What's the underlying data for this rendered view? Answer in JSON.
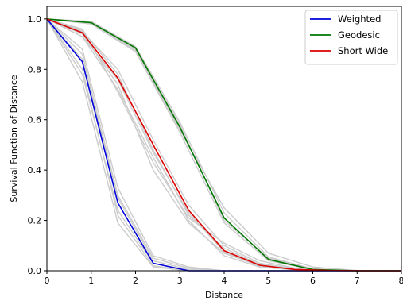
{
  "chart_data": {
    "type": "line",
    "xlabel": "Distance",
    "ylabel": "Survival Function of Distance",
    "xlim": [
      0,
      8
    ],
    "ylim": [
      0,
      1.05
    ],
    "xticks": [
      "0",
      "1",
      "2",
      "3",
      "4",
      "5",
      "6",
      "7",
      "8"
    ],
    "yticks": [
      "0.0",
      "0.2",
      "0.4",
      "0.6",
      "0.8",
      "1.0"
    ],
    "grid": false,
    "legend_position": "top-right",
    "x": [
      0,
      0.8,
      1.6,
      2.4,
      3.2,
      4.0,
      4.8,
      5.6,
      6.4,
      7.2,
      8.0
    ],
    "series": [
      {
        "name": "Weighted",
        "color": "#0000dd",
        "x": [
          0,
          0.8,
          1.6,
          2.4,
          3.2,
          4.0,
          8.0
        ],
        "values": [
          1.0,
          0.83,
          0.27,
          0.03,
          0.0,
          0.0,
          0.0
        ]
      },
      {
        "name": "Geodesic",
        "color": "#007700",
        "x": [
          0,
          1.0,
          2.0,
          3.0,
          4.0,
          5.0,
          6.0,
          7.0,
          8.0
        ],
        "values": [
          1.0,
          0.985,
          0.885,
          0.57,
          0.21,
          0.045,
          0.005,
          0.0,
          0.0
        ]
      },
      {
        "name": "Short Wide",
        "color": "#dd0000",
        "x": [
          0,
          0.8,
          1.6,
          2.4,
          3.2,
          4.0,
          4.8,
          5.6,
          6.4,
          7.2,
          8.0
        ],
        "values": [
          1.0,
          0.945,
          0.765,
          0.5,
          0.24,
          0.08,
          0.022,
          0.005,
          0.001,
          0.0,
          0.0
        ]
      }
    ],
    "background_series_color": "#cccccc",
    "background_series": [
      {
        "x": [
          0,
          0.8,
          1.6,
          2.4,
          3.2,
          4.0,
          8.0
        ],
        "values": [
          1.0,
          0.86,
          0.3,
          0.05,
          0.01,
          0.0,
          0.0
        ]
      },
      {
        "x": [
          0,
          0.8,
          1.6,
          2.4,
          3.2,
          4.0,
          8.0
        ],
        "values": [
          1.0,
          0.88,
          0.33,
          0.06,
          0.015,
          0.0,
          0.0
        ]
      },
      {
        "x": [
          0,
          0.8,
          1.6,
          2.4,
          3.2,
          4.0,
          8.0
        ],
        "values": [
          1.0,
          0.8,
          0.22,
          0.02,
          0.0,
          0.0,
          0.0
        ]
      },
      {
        "x": [
          0,
          0.8,
          1.6,
          2.4,
          3.2,
          4.0,
          8.0
        ],
        "values": [
          1.0,
          0.75,
          0.19,
          0.015,
          0.0,
          0.0,
          0.0
        ]
      },
      {
        "x": [
          0,
          0.8,
          1.6,
          2.4,
          3.2,
          4.0,
          8.0
        ],
        "values": [
          1.0,
          0.84,
          0.29,
          0.04,
          0.005,
          0.0,
          0.0
        ]
      },
      {
        "x": [
          0,
          0.8,
          1.6,
          2.4,
          3.2,
          4.0,
          8.0
        ],
        "values": [
          1.0,
          0.78,
          0.24,
          0.03,
          0.002,
          0.0,
          0.0
        ]
      },
      {
        "x": [
          0,
          1.0,
          2.0,
          3.0,
          4.0,
          5.0,
          6.0,
          7.0,
          8.0
        ],
        "values": [
          1.0,
          0.98,
          0.87,
          0.55,
          0.19,
          0.04,
          0.004,
          0.0,
          0.0
        ]
      },
      {
        "x": [
          0,
          1.0,
          2.0,
          3.0,
          4.0,
          5.0,
          6.0,
          7.0,
          8.0
        ],
        "values": [
          1.0,
          0.99,
          0.89,
          0.59,
          0.23,
          0.055,
          0.008,
          0.0,
          0.0
        ]
      },
      {
        "x": [
          0,
          1.0,
          2.0,
          3.0,
          4.0,
          5.0,
          6.0,
          7.0,
          8.0
        ],
        "values": [
          1.0,
          0.985,
          0.875,
          0.56,
          0.25,
          0.07,
          0.015,
          0.001,
          0.0
        ]
      },
      {
        "x": [
          0,
          1.0,
          2.0,
          3.0,
          4.0,
          5.0,
          6.0,
          7.0,
          8.0
        ],
        "values": [
          1.0,
          0.98,
          0.88,
          0.58,
          0.2,
          0.05,
          0.006,
          0.0,
          0.0
        ]
      },
      {
        "x": [
          0,
          0.8,
          1.6,
          2.4,
          3.2,
          4.0,
          4.8,
          5.6,
          6.4,
          7.2,
          8.0
        ],
        "values": [
          1.0,
          0.93,
          0.72,
          0.45,
          0.2,
          0.06,
          0.015,
          0.003,
          0.0,
          0.0,
          0.0
        ]
      },
      {
        "x": [
          0,
          0.8,
          1.6,
          2.4,
          3.2,
          4.0,
          4.8,
          5.6,
          6.4,
          7.2,
          8.0
        ],
        "values": [
          1.0,
          0.95,
          0.8,
          0.52,
          0.26,
          0.1,
          0.03,
          0.008,
          0.002,
          0.0,
          0.0
        ]
      },
      {
        "x": [
          0,
          0.8,
          1.6,
          2.4,
          3.2,
          4.0,
          4.8,
          5.6,
          6.4,
          7.2,
          8.0
        ],
        "values": [
          1.0,
          0.94,
          0.74,
          0.4,
          0.19,
          0.07,
          0.02,
          0.005,
          0.001,
          0.0,
          0.0
        ]
      },
      {
        "x": [
          0,
          0.8,
          1.6,
          2.4,
          3.2,
          4.0,
          4.8,
          5.6,
          6.4,
          7.2,
          8.0
        ],
        "values": [
          1.0,
          0.955,
          0.78,
          0.48,
          0.22,
          0.09,
          0.025,
          0.006,
          0.001,
          0.0,
          0.0
        ]
      },
      {
        "x": [
          0,
          0.8,
          1.6,
          2.4,
          3.2,
          4.0,
          4.8,
          5.6,
          6.4,
          7.2,
          8.0
        ],
        "values": [
          1.0,
          0.96,
          0.71,
          0.43,
          0.21,
          0.11,
          0.04,
          0.01,
          0.003,
          0.0,
          0.0
        ]
      },
      {
        "x": [
          0,
          0.8,
          1.6,
          2.4,
          3.2,
          4.0,
          4.8,
          5.6,
          6.4,
          7.2,
          8.0
        ],
        "values": [
          1.0,
          0.93,
          0.76,
          0.47,
          0.23,
          0.075,
          0.018,
          0.004,
          0.0,
          0.0,
          0.0
        ]
      }
    ]
  }
}
